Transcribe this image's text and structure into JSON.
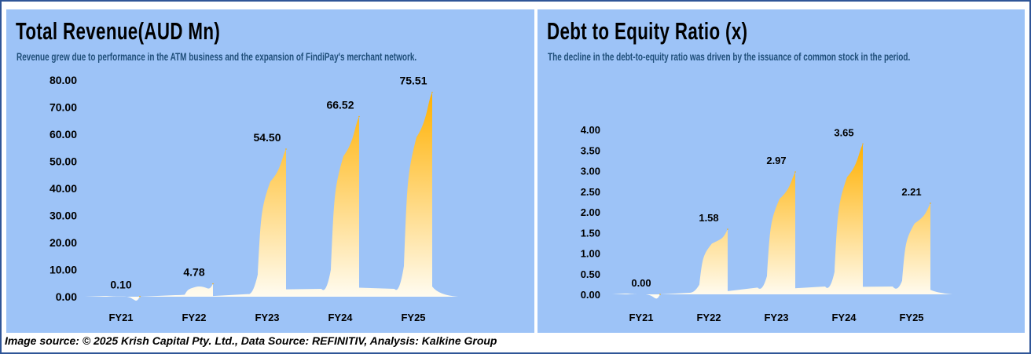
{
  "colors": {
    "panel_bg": "#9dc3f7",
    "frame_border": "#2f5597",
    "fill_top": "#ffb000",
    "fill_bottom": "#fffdf5",
    "subtitle": "#1f4e79"
  },
  "left": {
    "title": "Total Revenue(AUD Mn)",
    "subtitle": "Revenue grew due to performance in the ATM business and the expansion of FindiPay's merchant network."
  },
  "right": {
    "title": "Debt to Equity Ratio (x)",
    "subtitle": "The decline in the debt-to-equity ratio was driven by the issuance of common stock in the period."
  },
  "footer": "Image source: © 2025 Krish Capital Pty. Ltd., Data Source: REFINITIV, Analysis: Kalkine Group",
  "chart_data": [
    {
      "type": "area",
      "title": "Total Revenue(AUD Mn)",
      "categories": [
        "FY21",
        "FY22",
        "FY23",
        "FY24",
        "FY25"
      ],
      "values": [
        0.1,
        4.78,
        54.5,
        66.52,
        75.51
      ],
      "data_labels": [
        "0.10",
        "4.78",
        "54.50",
        "66.52",
        "75.51"
      ],
      "yticks": [
        "80.00",
        "70.00",
        "60.00",
        "50.00",
        "40.00",
        "30.00",
        "20.00",
        "10.00",
        "0.00"
      ],
      "ylim": [
        0,
        80
      ],
      "grid": false,
      "legend": "none"
    },
    {
      "type": "area",
      "title": "Debt to Equity Ratio (x)",
      "categories": [
        "FY21",
        "FY22",
        "FY23",
        "FY24",
        "FY25"
      ],
      "values": [
        0.0,
        1.58,
        2.97,
        3.65,
        2.21
      ],
      "data_labels": [
        "0.00",
        "1.58",
        "2.97",
        "3.65",
        "2.21"
      ],
      "yticks": [
        "4.00",
        "3.50",
        "3.00",
        "2.50",
        "2.00",
        "1.50",
        "1.00",
        "0.50",
        "0.00"
      ],
      "ylim": [
        0,
        4
      ],
      "grid": false,
      "legend": "none"
    }
  ]
}
